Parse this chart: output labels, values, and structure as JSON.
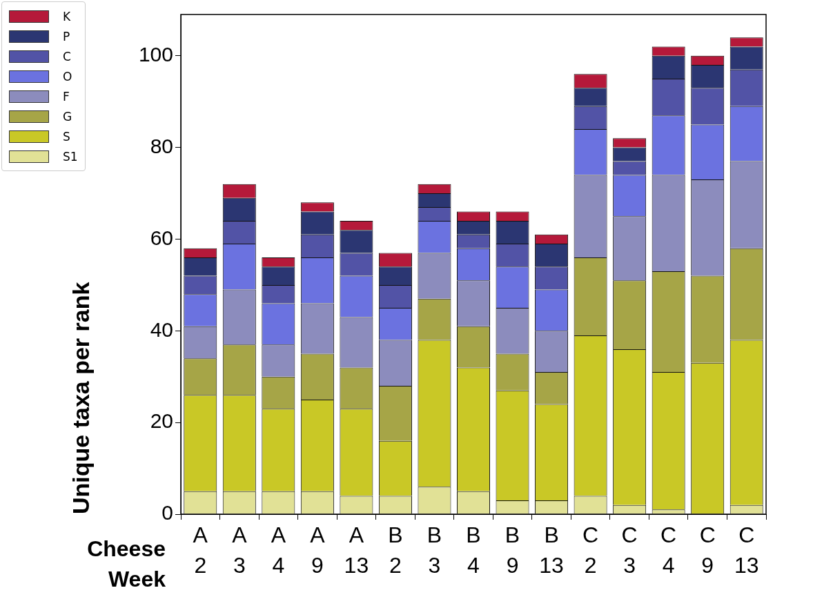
{
  "chart_data": {
    "type": "bar",
    "stacked": true,
    "ylabel": "Unique taxa per rank",
    "categories": [
      "A\n2",
      "A\n3",
      "A\n4",
      "A\n9",
      "A\n13",
      "B\n2",
      "B\n3",
      "B\n4",
      "B\n9",
      "B\n13",
      "C\n2",
      "C\n3",
      "C\n4",
      "C\n9",
      "C\n13"
    ],
    "annotations": [
      "Cheese",
      "Week"
    ],
    "series": [
      {
        "name": "S1",
        "color": "#e1e196",
        "values": [
          5,
          5,
          5,
          5,
          4,
          4,
          6,
          5,
          3,
          3,
          4,
          2,
          1,
          0,
          2
        ]
      },
      {
        "name": "S",
        "color": "#c9c826",
        "values": [
          21,
          21,
          18,
          20,
          19,
          12,
          32,
          27,
          24,
          21,
          35,
          34,
          30,
          33,
          36
        ]
      },
      {
        "name": "G",
        "color": "#a6a547",
        "values": [
          8,
          11,
          7,
          10,
          9,
          12,
          9,
          9,
          8,
          7,
          17,
          15,
          22,
          19,
          20
        ]
      },
      {
        "name": "F",
        "color": "#8c8cbd",
        "values": [
          7,
          12,
          7,
          11,
          11,
          10,
          10,
          10,
          10,
          9,
          18,
          14,
          21,
          21,
          19
        ]
      },
      {
        "name": "O",
        "color": "#6b72e0",
        "values": [
          7,
          10,
          9,
          10,
          9,
          7,
          7,
          7,
          9,
          9,
          10,
          9,
          13,
          12,
          12
        ]
      },
      {
        "name": "C",
        "color": "#5253a6",
        "values": [
          4,
          5,
          4,
          5,
          5,
          5,
          3,
          3,
          5,
          5,
          5,
          3,
          8,
          8,
          8
        ]
      },
      {
        "name": "P",
        "color": "#2b3672",
        "values": [
          4,
          5,
          4,
          5,
          5,
          4,
          3,
          3,
          5,
          5,
          4,
          3,
          5,
          5,
          5
        ]
      },
      {
        "name": "K",
        "color": "#b5193a",
        "values": [
          2,
          3,
          2,
          2,
          2,
          3,
          2,
          2,
          2,
          2,
          3,
          2,
          2,
          2,
          2
        ]
      }
    ],
    "ylim": [
      0,
      109
    ],
    "yticks": [
      0,
      20,
      40,
      60,
      80,
      100
    ],
    "legend": "top left"
  }
}
